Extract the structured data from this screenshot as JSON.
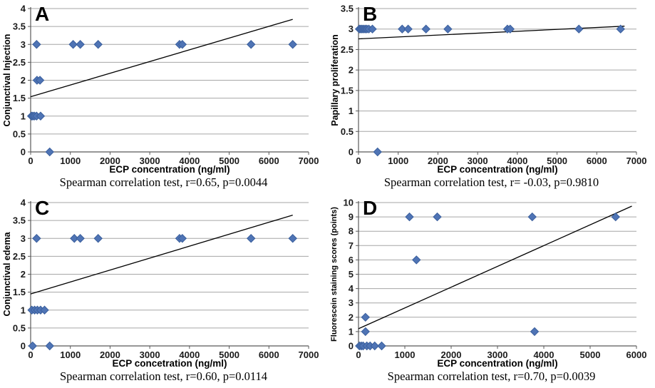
{
  "colors": {
    "marker_fill": "#4f74b5",
    "marker_border": "#3a5f9d",
    "gridline": "#a6a6a6",
    "axis": "#595959",
    "trend_line": "#000000",
    "text": "#000000"
  },
  "chart_data": [
    {
      "panel_label": "A",
      "type": "scatter",
      "xlabel": "ECP concentration (ng/ml)",
      "ylabel": "Conjunctival Injection",
      "caption": "Spearman correlation test, r=0.65, p=0.0044",
      "xlim": [
        0,
        7000
      ],
      "xtick_step": 1000,
      "ylim": [
        0,
        4
      ],
      "ytick_step": 0.5,
      "grid": "horizontal",
      "legend": "none",
      "marker": "diamond",
      "points": [
        [
          150,
          3
        ],
        [
          1070,
          3
        ],
        [
          1250,
          3
        ],
        [
          1700,
          3
        ],
        [
          3750,
          3
        ],
        [
          3820,
          3
        ],
        [
          5550,
          3
        ],
        [
          6600,
          3
        ],
        [
          160,
          2
        ],
        [
          235,
          2
        ],
        [
          20,
          1
        ],
        [
          55,
          1
        ],
        [
          95,
          1
        ],
        [
          150,
          1
        ],
        [
          250,
          1
        ],
        [
          480,
          0
        ]
      ],
      "trendline": {
        "x1": 0,
        "y1": 1.54,
        "x2": 6600,
        "y2": 3.7
      }
    },
    {
      "panel_label": "B",
      "type": "scatter",
      "xlabel": "ECP concentration (ng/ml)",
      "ylabel": "Papillary proliferation",
      "caption": "Spearman correlation test, r= -0.03, p=0.9810",
      "xlim": [
        0,
        7000
      ],
      "xtick_step": 1000,
      "ylim": [
        0,
        3.5
      ],
      "ytick_step": 0.5,
      "grid": "horizontal",
      "legend": "none",
      "marker": "diamond",
      "points": [
        [
          20,
          3
        ],
        [
          55,
          3
        ],
        [
          90,
          3
        ],
        [
          130,
          3
        ],
        [
          170,
          3
        ],
        [
          210,
          3
        ],
        [
          260,
          3
        ],
        [
          350,
          3
        ],
        [
          1100,
          3
        ],
        [
          1250,
          3
        ],
        [
          1700,
          3
        ],
        [
          2250,
          3
        ],
        [
          3750,
          3
        ],
        [
          3820,
          3
        ],
        [
          5550,
          3
        ],
        [
          6600,
          3
        ],
        [
          480,
          0
        ]
      ],
      "trendline": {
        "x1": 0,
        "y1": 2.76,
        "x2": 6700,
        "y2": 3.07
      }
    },
    {
      "panel_label": "C",
      "type": "scatter",
      "xlabel": "ECP concetration (ng/ml)",
      "ylabel": "Conjunctival edema",
      "caption": "Spearman correlation test, r=0.60, p=0.0114",
      "xlim": [
        0,
        7000
      ],
      "xtick_step": 1000,
      "ylim": [
        0,
        4
      ],
      "ytick_step": 0.5,
      "grid": "horizontal",
      "legend": "none",
      "marker": "diamond",
      "points": [
        [
          150,
          3
        ],
        [
          1100,
          3
        ],
        [
          1250,
          3
        ],
        [
          1700,
          3
        ],
        [
          3750,
          3
        ],
        [
          3820,
          3
        ],
        [
          5550,
          3
        ],
        [
          6600,
          3
        ],
        [
          30,
          1
        ],
        [
          100,
          1
        ],
        [
          170,
          1
        ],
        [
          250,
          1
        ],
        [
          350,
          1
        ],
        [
          50,
          0
        ],
        [
          480,
          0
        ]
      ],
      "trendline": {
        "x1": 0,
        "y1": 1.45,
        "x2": 6600,
        "y2": 3.65
      }
    },
    {
      "panel_label": "D",
      "type": "scatter",
      "xlabel": "ECP concentration (ng/ml)",
      "ylabel": "Fluorescein staining scores (points)",
      "caption": "Spearman correlation test, r=0.70, p=0.0039",
      "xlim": [
        0,
        6000
      ],
      "xtick_step": 1000,
      "ylim": [
        0,
        10
      ],
      "ytick_step": 1,
      "grid": "horizontal",
      "legend": "none",
      "marker": "diamond",
      "points": [
        [
          1100,
          9
        ],
        [
          1700,
          9
        ],
        [
          3750,
          9
        ],
        [
          5550,
          9
        ],
        [
          1250,
          6
        ],
        [
          150,
          2
        ],
        [
          150,
          1
        ],
        [
          3800,
          1
        ],
        [
          20,
          0
        ],
        [
          60,
          0
        ],
        [
          100,
          0
        ],
        [
          180,
          0
        ],
        [
          250,
          0
        ],
        [
          350,
          0
        ],
        [
          500,
          0
        ]
      ],
      "trendline": {
        "x1": 0,
        "y1": 1.2,
        "x2": 5900,
        "y2": 9.75
      }
    }
  ]
}
